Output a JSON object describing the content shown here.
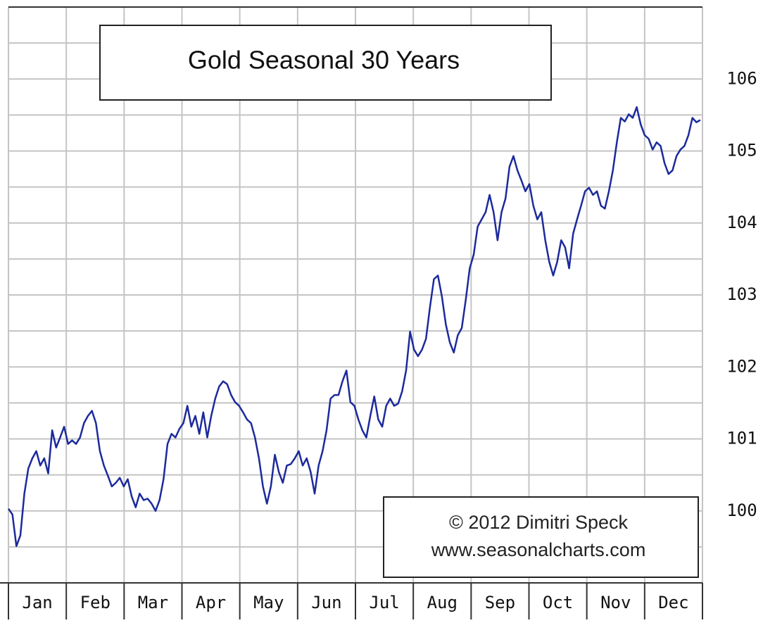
{
  "chart_data": {
    "type": "line",
    "title": "Gold Seasonal 30 Years",
    "annotations": [
      "© 2012  Dimitri Speck",
      "www.seasonalcharts.com"
    ],
    "months": [
      "Jan",
      "Feb",
      "Mar",
      "Apr",
      "May",
      "Jun",
      "Jul",
      "Aug",
      "Sep",
      "Oct",
      "Nov",
      "Dec"
    ],
    "values": [
      100.03,
      99.95,
      99.51,
      99.66,
      100.24,
      100.59,
      100.73,
      100.83,
      100.63,
      100.73,
      100.52,
      101.12,
      100.88,
      101.02,
      101.17,
      100.93,
      100.98,
      100.93,
      101.02,
      101.22,
      101.32,
      101.39,
      101.22,
      100.83,
      100.63,
      100.49,
      100.34,
      100.39,
      100.46,
      100.34,
      100.44,
      100.2,
      100.05,
      100.24,
      100.15,
      100.17,
      100.1,
      100.0,
      100.15,
      100.44,
      100.93,
      101.07,
      101.02,
      101.14,
      101.22,
      101.46,
      101.17,
      101.32,
      101.07,
      101.37,
      101.02,
      101.32,
      101.56,
      101.73,
      101.8,
      101.76,
      101.61,
      101.51,
      101.46,
      101.37,
      101.27,
      101.22,
      101.02,
      100.73,
      100.34,
      100.1,
      100.34,
      100.78,
      100.54,
      100.39,
      100.63,
      100.65,
      100.73,
      100.83,
      100.63,
      100.73,
      100.54,
      100.24,
      100.63,
      100.83,
      101.12,
      101.56,
      101.61,
      101.61,
      101.8,
      101.95,
      101.51,
      101.46,
      101.27,
      101.12,
      101.02,
      101.32,
      101.59,
      101.27,
      101.17,
      101.46,
      101.56,
      101.46,
      101.49,
      101.66,
      101.95,
      102.49,
      102.24,
      102.15,
      102.24,
      102.39,
      102.83,
      103.22,
      103.27,
      102.98,
      102.59,
      102.34,
      102.2,
      102.44,
      102.54,
      102.93,
      103.37,
      103.56,
      103.95,
      104.05,
      104.15,
      104.39,
      104.15,
      103.76,
      104.15,
      104.34,
      104.78,
      104.93,
      104.73,
      104.59,
      104.44,
      104.54,
      104.24,
      104.05,
      104.15,
      103.76,
      103.46,
      103.27,
      103.46,
      103.76,
      103.66,
      103.37,
      103.85,
      104.05,
      104.24,
      104.44,
      104.49,
      104.39,
      104.44,
      104.24,
      104.2,
      104.44,
      104.73,
      105.12,
      105.46,
      105.41,
      105.51,
      105.46,
      105.61,
      105.37,
      105.22,
      105.17,
      105.02,
      105.12,
      105.07,
      104.83,
      104.68,
      104.73,
      104.93,
      105.02,
      105.07,
      105.22,
      105.46,
      105.4,
      105.43
    ],
    "color": "#1c2a9c",
    "ylim": [
      99,
      107
    ],
    "yticks": [
      100,
      101,
      102,
      103,
      104,
      105,
      106
    ],
    "yminor": [
      99.5,
      100.5,
      101.5,
      102.5,
      103.5,
      104.5,
      105.5,
      106.5
    ],
    "grid": true,
    "y_axis_side": "right"
  }
}
